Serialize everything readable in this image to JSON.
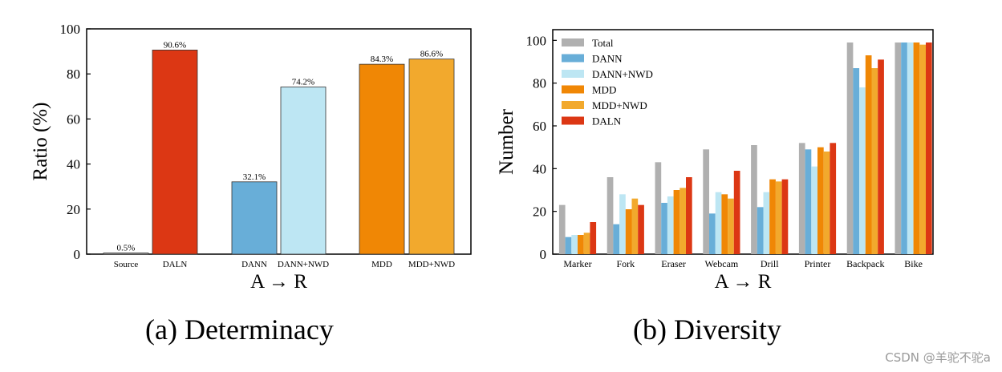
{
  "chart_data": [
    {
      "type": "bar",
      "caption": "(a) Determinacy",
      "xlabel": "A → R",
      "ylabel": "Ratio (%)",
      "ylim": [
        0,
        100
      ],
      "yticks": [
        0,
        20,
        40,
        60,
        80,
        100
      ],
      "categories": [
        "Source",
        "DALN",
        "DANN",
        "DANN+NWD",
        "MDD",
        "MDD+NWD"
      ],
      "values": [
        0.5,
        90.6,
        32.1,
        74.2,
        84.3,
        86.6
      ],
      "data_labels": [
        "0.5%",
        "90.6%",
        "32.1%",
        "74.2%",
        "84.3%",
        "86.6%"
      ],
      "colors": [
        "#b0b0b0",
        "#dc3714",
        "#68aed8",
        "#bde6f3",
        "#f08705",
        "#f2a92d"
      ],
      "grid": false
    },
    {
      "type": "bar",
      "caption": "(b) Diversity",
      "xlabel": "A → R",
      "ylabel": "Number",
      "ylim": [
        0,
        105
      ],
      "yticks": [
        0,
        20,
        40,
        60,
        80,
        100
      ],
      "categories": [
        "Marker",
        "Fork",
        "Eraser",
        "Webcam",
        "Drill",
        "Printer",
        "Backpack",
        "Bike"
      ],
      "legend_position": "top-left",
      "grid": false,
      "series": [
        {
          "name": "Total",
          "color": "#b0b0b0",
          "values": [
            23,
            36,
            43,
            49,
            51,
            52,
            99,
            99
          ]
        },
        {
          "name": "DANN",
          "color": "#68aed8",
          "values": [
            8,
            14,
            24,
            19,
            22,
            49,
            87,
            99
          ]
        },
        {
          "name": "DANN+NWD",
          "color": "#bde6f3",
          "values": [
            9,
            28,
            27,
            29,
            29,
            41,
            78,
            99
          ]
        },
        {
          "name": "MDD",
          "color": "#f08705",
          "values": [
            9,
            21,
            30,
            28,
            35,
            50,
            93,
            99
          ]
        },
        {
          "name": "MDD+NWD",
          "color": "#f2a92d",
          "values": [
            10,
            26,
            31,
            26,
            34,
            48,
            87,
            98
          ]
        },
        {
          "name": "DALN",
          "color": "#dc3714",
          "values": [
            15,
            23,
            36,
            39,
            35,
            52,
            91,
            99
          ]
        }
      ]
    }
  ],
  "watermark": "CSDN @羊驼不驼a"
}
